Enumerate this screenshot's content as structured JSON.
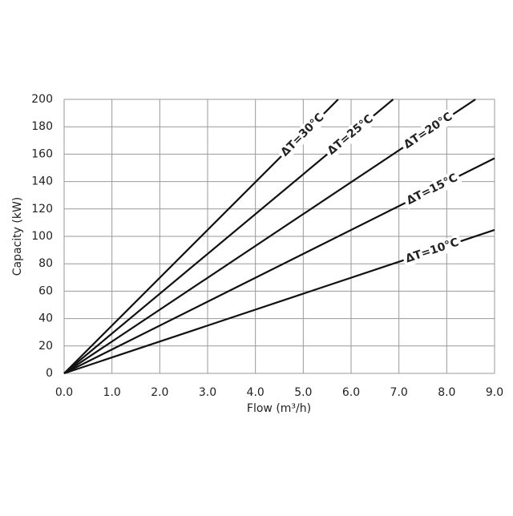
{
  "chart_data": {
    "type": "line",
    "x_label": "Flow (m³/h)",
    "y_label": "Capacity (kW)",
    "series": [
      {
        "name": "ΔT=10°C",
        "color": "#111111",
        "x": [
          0,
          9.0
        ],
        "values": [
          0,
          104.7
        ]
      },
      {
        "name": "ΔT=15°C",
        "color": "#111111",
        "x": [
          0,
          9.0
        ],
        "values": [
          0,
          157
        ]
      },
      {
        "name": "ΔT=20°C",
        "color": "#111111",
        "x": [
          0,
          8.6
        ],
        "values": [
          0,
          200
        ]
      },
      {
        "name": "ΔT=25°C",
        "color": "#111111",
        "x": [
          0,
          6.88
        ],
        "values": [
          0,
          200
        ]
      },
      {
        "name": "ΔT=30°C",
        "color": "#111111",
        "x": [
          0,
          5.73
        ],
        "values": [
          0,
          200
        ]
      }
    ],
    "xlim": [
      0,
      9
    ],
    "ylim": [
      0,
      200
    ],
    "xticks": [
      {
        "value": 0,
        "label": "0.0"
      },
      {
        "value": 1,
        "label": "1.0"
      },
      {
        "value": 2,
        "label": "2.0"
      },
      {
        "value": 3,
        "label": "3.0"
      },
      {
        "value": 4,
        "label": "4.0"
      },
      {
        "value": 5,
        "label": "5.0"
      },
      {
        "value": 6,
        "label": "6.0"
      },
      {
        "value": 7,
        "label": "7.0"
      },
      {
        "value": 8,
        "label": "8.0"
      },
      {
        "value": 9,
        "label": "9.0"
      }
    ],
    "yticks": [
      0,
      20,
      40,
      60,
      80,
      100,
      120,
      140,
      160,
      180,
      200
    ],
    "grid": true
  }
}
